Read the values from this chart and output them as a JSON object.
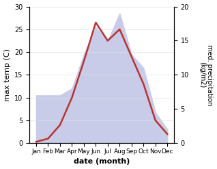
{
  "months": [
    "Jan",
    "Feb",
    "Mar",
    "Apr",
    "May",
    "Jun",
    "Jul",
    "Aug",
    "Sep",
    "Oct",
    "Nov",
    "Dec"
  ],
  "temperature": [
    0.3,
    1.0,
    4.0,
    10.0,
    18.0,
    26.5,
    22.5,
    25.0,
    19.0,
    13.0,
    5.0,
    2.0
  ],
  "precipitation": [
    7.0,
    7.0,
    7.0,
    8.0,
    13.0,
    17.0,
    15.0,
    19.0,
    13.0,
    11.0,
    4.5,
    2.0
  ],
  "temp_color": "#b83232",
  "precip_fill_color": "#c8cce8",
  "temp_ylim": [
    0,
    30
  ],
  "precip_ylim": [
    0,
    20
  ],
  "temp_yticks": [
    0,
    5,
    10,
    15,
    20,
    25,
    30
  ],
  "precip_yticks": [
    0,
    5,
    10,
    15,
    20
  ],
  "xlabel": "date (month)",
  "ylabel_left": "max temp (C)",
  "ylabel_right": "med. precipitation\n(kg/m2)",
  "background_color": "#ffffff",
  "line_width": 1.8,
  "figsize": [
    3.18,
    2.47
  ],
  "dpi": 100
}
